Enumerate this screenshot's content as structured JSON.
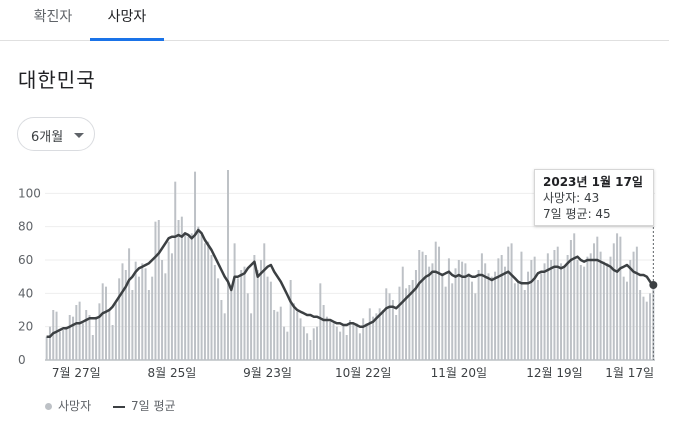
{
  "tabs": [
    {
      "label": "확진자",
      "selected": false
    },
    {
      "label": "사망자",
      "selected": true
    }
  ],
  "region": "대한민국",
  "range_selector": {
    "label": "6개월"
  },
  "colors": {
    "bar": "#bdc1c6",
    "line": "#3c4043",
    "accent": "#1a73e8"
  },
  "tooltip": {
    "date": "2023년 1월 17일",
    "deaths": "사망자: 43",
    "avg": "7일 평균: 45"
  },
  "legend": {
    "bars": "사망자",
    "line": "7일 평균"
  },
  "chart_data": {
    "type": "bar",
    "ylim": [
      0,
      120
    ],
    "y_ticks": [
      "0",
      "20",
      "40",
      "60",
      "80",
      "100"
    ],
    "x_tick_labels": [
      "7월 27일",
      "8월 25일",
      "9월 23일",
      "10월 22일",
      "11월 20일",
      "12월 19일",
      "1월 17일"
    ],
    "x_tick_index": [
      9,
      38,
      67,
      96,
      125,
      154,
      183
    ],
    "series": [
      {
        "name": "사망자",
        "type": "bar",
        "values": [
          14,
          20,
          30,
          29,
          17,
          18,
          20,
          27,
          26,
          33,
          35,
          22,
          30,
          27,
          15,
          26,
          34,
          46,
          44,
          30,
          21,
          34,
          49,
          58,
          54,
          67,
          42,
          59,
          50,
          58,
          55,
          42,
          50,
          83,
          84,
          60,
          52,
          71,
          64,
          107,
          84,
          86,
          76,
          74,
          76,
          113,
          80,
          75,
          70,
          71,
          63,
          57,
          49,
          36,
          28,
          114,
          42,
          70,
          49,
          54,
          56,
          40,
          28,
          63,
          54,
          60,
          70,
          50,
          47,
          30,
          29,
          32,
          20,
          17,
          48,
          34,
          29,
          25,
          20,
          16,
          12,
          19,
          20,
          46,
          33,
          26,
          23,
          22,
          20,
          17,
          21,
          15,
          24,
          22,
          22,
          16,
          25,
          22,
          31,
          26,
          28,
          31,
          30,
          43,
          40,
          36,
          27,
          44,
          56,
          43,
          45,
          48,
          54,
          66,
          65,
          63,
          56,
          58,
          71,
          68,
          52,
          44,
          61,
          46,
          55,
          60,
          59,
          58,
          52,
          47,
          40,
          54,
          64,
          58,
          52,
          50,
          53,
          61,
          63,
          56,
          68,
          70,
          46,
          47,
          65,
          42,
          53,
          60,
          62,
          48,
          52,
          58,
          64,
          60,
          66,
          68,
          58,
          56,
          63,
          72,
          76,
          60,
          57,
          56,
          62,
          64,
          70,
          74,
          65,
          59,
          58,
          62,
          70,
          76,
          74,
          50,
          47,
          60,
          65,
          68,
          42,
          38,
          35,
          40,
          43
        ]
      },
      {
        "name": "7일 평균",
        "type": "line",
        "values": [
          14,
          14,
          16,
          17,
          18,
          19,
          19,
          20,
          21,
          22,
          22,
          23,
          24,
          25,
          25,
          25,
          26,
          28,
          29,
          30,
          32,
          35,
          38,
          41,
          44,
          48,
          50,
          53,
          55,
          56,
          57,
          58,
          60,
          62,
          64,
          67,
          70,
          73,
          74,
          74,
          75,
          74,
          76,
          75,
          73,
          75,
          78,
          76,
          72,
          69,
          66,
          62,
          58,
          54,
          50,
          47,
          42,
          50,
          50,
          51,
          52,
          55,
          57,
          59,
          50,
          52,
          54,
          56,
          57,
          53,
          50,
          47,
          43,
          39,
          35,
          32,
          30,
          29,
          28,
          27,
          27,
          26,
          26,
          25,
          24,
          24,
          24,
          23,
          22,
          22,
          21,
          21,
          22,
          22,
          21,
          20,
          20,
          21,
          22,
          23,
          25,
          27,
          29,
          31,
          32,
          32,
          31,
          33,
          35,
          37,
          39,
          41,
          43,
          46,
          48,
          50,
          51,
          53,
          53,
          52,
          51,
          52,
          53,
          51,
          50,
          51,
          50,
          50,
          51,
          50,
          50,
          51,
          51,
          50,
          49,
          48,
          49,
          50,
          51,
          52,
          53,
          51,
          49,
          47,
          46,
          46,
          46,
          47,
          49,
          52,
          53,
          53,
          54,
          55,
          56,
          56,
          55,
          56,
          58,
          60,
          61,
          62,
          60,
          59,
          60,
          60,
          60,
          60,
          59,
          58,
          57,
          56,
          54,
          53,
          55,
          56,
          57,
          55,
          53,
          52,
          51,
          51,
          50,
          47,
          45
        ]
      }
    ]
  }
}
